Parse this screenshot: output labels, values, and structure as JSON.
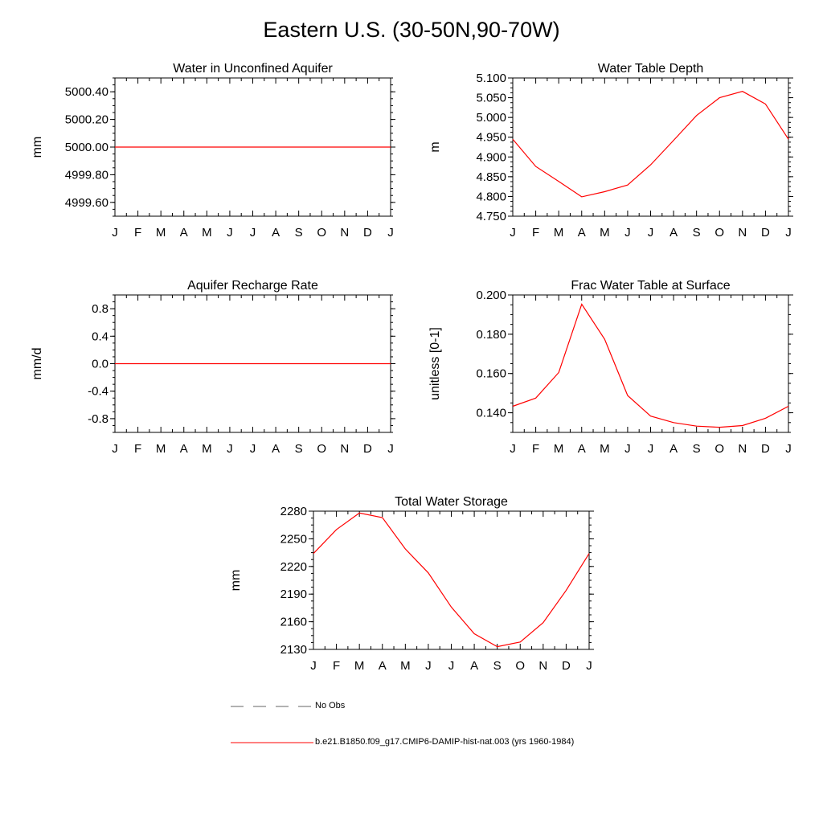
{
  "page_title": "Eastern U.S. (30-50N,90-70W)",
  "line_color": "#ff0000",
  "months": [
    "J",
    "F",
    "M",
    "A",
    "M",
    "J",
    "J",
    "A",
    "S",
    "O",
    "N",
    "D",
    "J"
  ],
  "legend": [
    {
      "label": "No Obs",
      "style": "dashed",
      "color": "#666666"
    },
    {
      "label": "b.e21.B1850.f09_g17.CMIP6-DAMIP-hist-nat.003 (yrs 1960-1984)",
      "style": "solid",
      "color": "#ff0000"
    }
  ],
  "chart_data": [
    {
      "type": "line",
      "title": "Water in Unconfined Aquifer",
      "ylabel": "mm",
      "ylim": [
        4999.5,
        5000.5
      ],
      "yticks": [
        4999.6,
        4999.8,
        5000.0,
        5000.2,
        5000.4
      ],
      "ytick_labels": [
        "4999.60",
        "4999.80",
        "5000.00",
        "5000.20",
        "5000.40"
      ],
      "x": [
        "J",
        "F",
        "M",
        "A",
        "M",
        "J",
        "J",
        "A",
        "S",
        "O",
        "N",
        "D",
        "J"
      ],
      "series": [
        {
          "values": [
            5000,
            5000,
            5000,
            5000,
            5000,
            5000,
            5000,
            5000,
            5000,
            5000,
            5000,
            5000,
            5000
          ]
        }
      ]
    },
    {
      "type": "line",
      "title": "Water Table Depth",
      "ylabel": "m",
      "ylim": [
        4.75,
        5.1
      ],
      "yticks": [
        4.75,
        4.8,
        4.85,
        4.9,
        4.95,
        5.0,
        5.05,
        5.1
      ],
      "ytick_labels": [
        "4.750",
        "4.800",
        "4.850",
        "4.900",
        "4.950",
        "5.000",
        "5.050",
        "5.100"
      ],
      "x": [
        "J",
        "F",
        "M",
        "A",
        "M",
        "J",
        "J",
        "A",
        "S",
        "O",
        "N",
        "D",
        "J"
      ],
      "series": [
        {
          "values": [
            4.945,
            4.876,
            4.838,
            4.799,
            4.812,
            4.829,
            4.88,
            4.942,
            5.005,
            5.05,
            5.066,
            5.034,
            4.945
          ]
        }
      ]
    },
    {
      "type": "line",
      "title": "Aquifer Recharge Rate",
      "ylabel": "mm/d",
      "ylim": [
        -1.0,
        1.0
      ],
      "yticks": [
        -0.8,
        -0.4,
        0.0,
        0.4,
        0.8
      ],
      "ytick_labels": [
        "-0.8",
        "-0.4",
        "0.0",
        "0.4",
        "0.8"
      ],
      "x": [
        "J",
        "F",
        "M",
        "A",
        "M",
        "J",
        "J",
        "A",
        "S",
        "O",
        "N",
        "D",
        "J"
      ],
      "series": [
        {
          "values": [
            0,
            0,
            0,
            0,
            0,
            0,
            0,
            0,
            0,
            0,
            0,
            0,
            0
          ]
        }
      ]
    },
    {
      "type": "line",
      "title": "Frac Water Table at Surface",
      "ylabel": "unitless [0-1]",
      "ylim": [
        0.13,
        0.2
      ],
      "yticks": [
        0.14,
        0.16,
        0.18,
        0.2
      ],
      "ytick_labels": [
        "0.140",
        "0.160",
        "0.180",
        "0.200"
      ],
      "x": [
        "J",
        "F",
        "M",
        "A",
        "M",
        "J",
        "J",
        "A",
        "S",
        "O",
        "N",
        "D",
        "J"
      ],
      "series": [
        {
          "values": [
            0.1433,
            0.1475,
            0.1605,
            0.1953,
            0.1775,
            0.1488,
            0.1383,
            0.135,
            0.1332,
            0.1326,
            0.1335,
            0.1372,
            0.1433
          ]
        }
      ]
    },
    {
      "type": "line",
      "title": "Total Water Storage",
      "ylabel": "mm",
      "ylim": [
        2130,
        2280
      ],
      "yticks": [
        2130,
        2160,
        2190,
        2220,
        2250,
        2280
      ],
      "ytick_labels": [
        "2130",
        "2160",
        "2190",
        "2220",
        "2250",
        "2280"
      ],
      "x": [
        "J",
        "F",
        "M",
        "A",
        "M",
        "J",
        "J",
        "A",
        "S",
        "O",
        "N",
        "D",
        "J"
      ],
      "series": [
        {
          "values": [
            2234,
            2260,
            2278,
            2273,
            2239,
            2213,
            2176,
            2147,
            2133,
            2138,
            2159,
            2194,
            2234
          ]
        }
      ]
    }
  ]
}
